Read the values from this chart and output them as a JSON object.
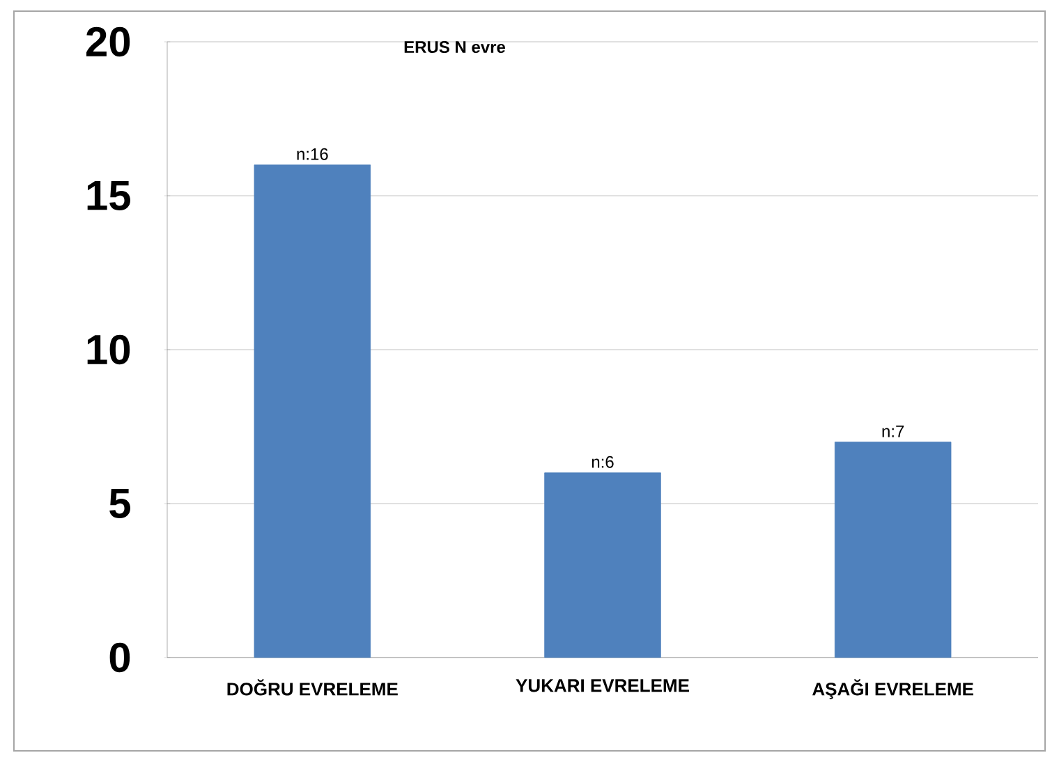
{
  "chart_data": {
    "type": "bar",
    "title": "ERUS N evre",
    "categories": [
      "DOĞRU EVRELEME",
      "YUKARI EVRELEME",
      "AŞAĞI EVRELEME"
    ],
    "values": [
      16,
      6,
      7
    ],
    "value_labels": [
      "n:16",
      "n:6",
      "n:7"
    ],
    "color": "#4f81bd",
    "ylim": [
      0,
      20
    ],
    "yticks": [
      0,
      5,
      10,
      15,
      20
    ],
    "grid": "y"
  }
}
